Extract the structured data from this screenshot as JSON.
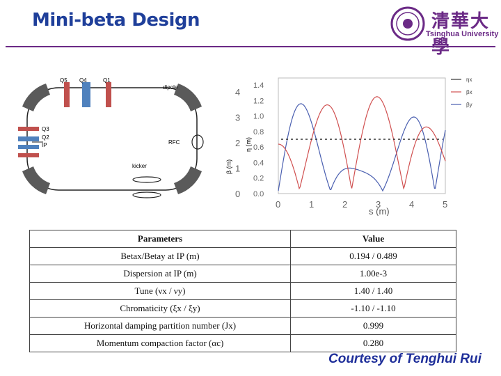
{
  "title": "Mini-beta Design",
  "logo": {
    "chars": "清華大學",
    "text": "Tsinghua University"
  },
  "ring": {
    "labels": {
      "q5": "Q5",
      "q4": "Q4",
      "q1": "Q1",
      "dipole": "dipole",
      "q3": "Q3",
      "q2": "Q2",
      "ip": "IP",
      "rfc": "RFC",
      "kicker": "kicker"
    }
  },
  "plot": {
    "y_left_ticks": [
      "0",
      "1",
      "2",
      "3",
      "4"
    ],
    "y_right_ticks": [
      "0.0",
      "0.2",
      "0.4",
      "0.6",
      "0.8",
      "1.0",
      "1.2",
      "1.4"
    ],
    "x_ticks": [
      "0",
      "1",
      "2",
      "3",
      "4",
      "5"
    ],
    "xlabel": "s (m)",
    "ylabel_left": "β (m)",
    "ylabel_right": "η (m)",
    "legend": [
      "ηx",
      "βx",
      "βy"
    ],
    "colors": {
      "eta": "#333333",
      "betax": "#d05050",
      "betay": "#4a5fb0"
    }
  },
  "table": {
    "headers": [
      "Parameters",
      "Value"
    ],
    "rows": [
      {
        "param": "Betax/Betay at IP (m)",
        "value": "0.194 / 0.489"
      },
      {
        "param": "Dispersion at IP (m)",
        "value": "1.00e-3"
      },
      {
        "param": "Tune (νx / νy)",
        "value": "1.40 / 1.40"
      },
      {
        "param": "Chromaticity (ξx / ξy)",
        "value": "-1.10 / -1.10"
      },
      {
        "param": "Horizontal damping partition number (Jx)",
        "value": "0.999"
      },
      {
        "param": "Momentum compaction factor (αc)",
        "value": "0.280"
      }
    ]
  },
  "courtesy": "Courtesy of Tenghui Rui"
}
